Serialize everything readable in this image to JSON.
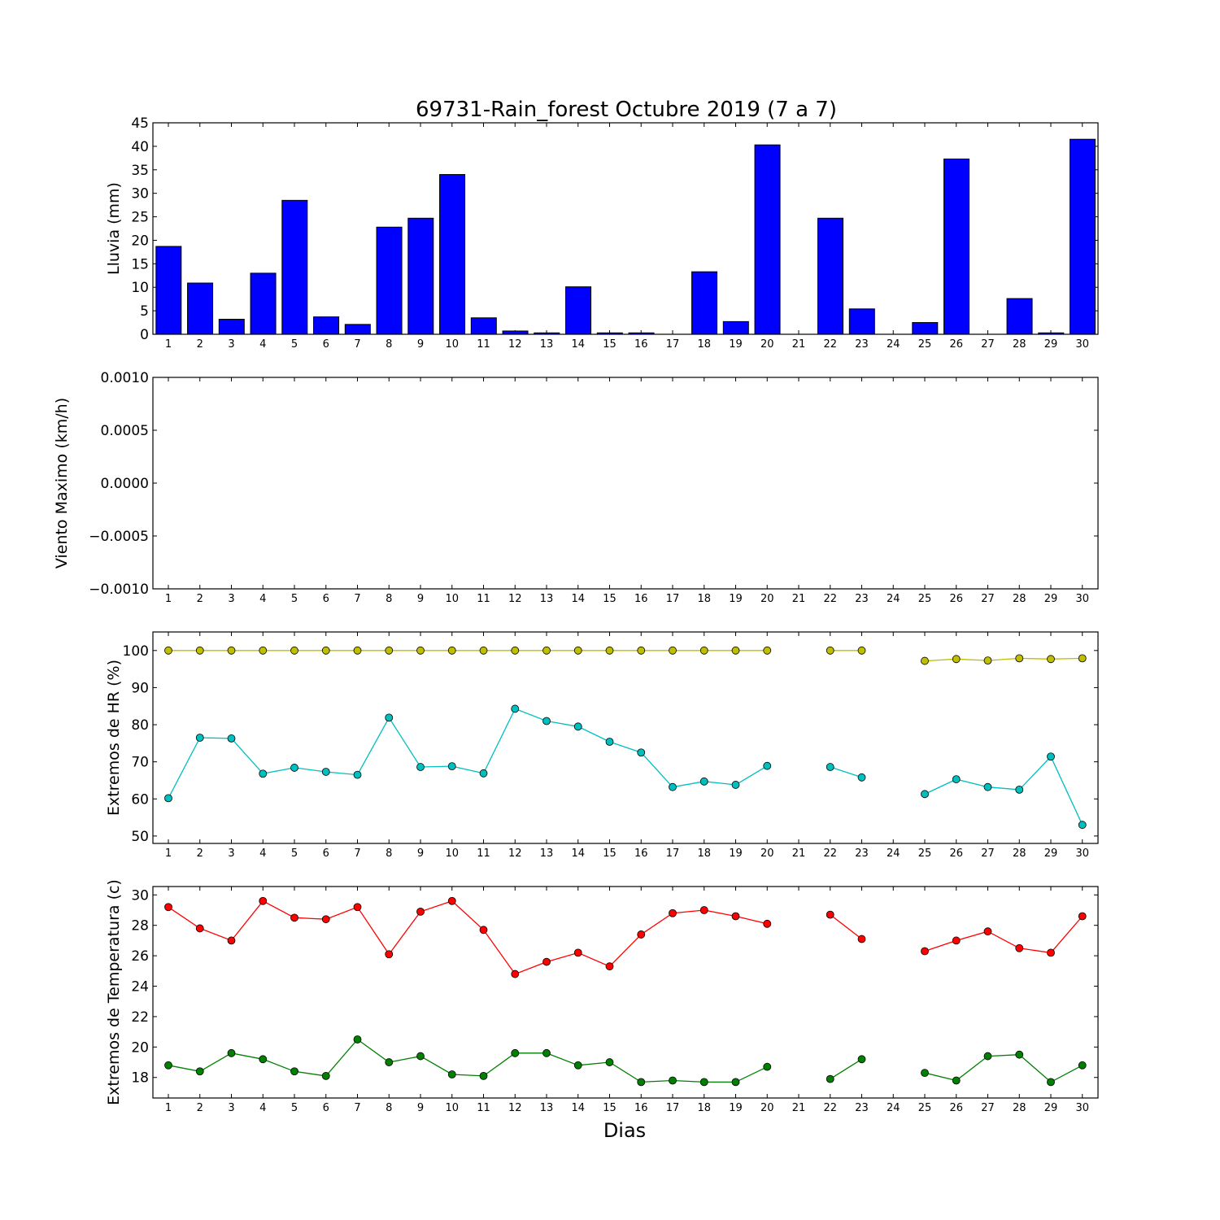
{
  "title": "69731-Rain_forest Octubre 2019  (7 a 7)",
  "xlabel": "Dias",
  "days": [
    1,
    2,
    3,
    4,
    5,
    6,
    7,
    8,
    9,
    10,
    11,
    12,
    13,
    14,
    15,
    16,
    17,
    18,
    19,
    20,
    21,
    22,
    23,
    24,
    25,
    26,
    27,
    28,
    29,
    30
  ],
  "chart_data": [
    {
      "type": "bar",
      "ylabel": "Lluvia (mm)",
      "ylim": [
        0,
        45
      ],
      "yticks": [
        "0",
        "5",
        "10",
        "15",
        "20",
        "25",
        "30",
        "35",
        "40",
        "45"
      ],
      "yticks_values": [
        0,
        5,
        10,
        15,
        20,
        25,
        30,
        35,
        40,
        45
      ],
      "color": "#0000ff",
      "values": [
        18.7,
        10.9,
        3.2,
        13.0,
        28.5,
        3.7,
        2.1,
        22.8,
        24.7,
        34.0,
        3.5,
        0.7,
        0.3,
        10.1,
        0.3,
        0.3,
        0,
        13.3,
        2.7,
        40.3,
        0,
        24.7,
        5.4,
        0,
        2.5,
        37.3,
        0,
        7.6,
        0.3,
        41.5
      ]
    },
    {
      "type": "line",
      "ylabel": "Viento Maximo (km/h)",
      "ylim": [
        -0.001,
        0.001
      ],
      "yticks": [
        "−0.0010",
        "−0.0005",
        "0.0000",
        "0.0005",
        "0.0010"
      ],
      "yticks_values": [
        -0.001,
        -0.0005,
        0,
        0.0005,
        0.001
      ],
      "series": []
    },
    {
      "type": "line",
      "ylabel": "Extremos de HR (%)",
      "ylim": [
        48,
        105
      ],
      "yticks": [
        "50",
        "60",
        "70",
        "80",
        "90",
        "100"
      ],
      "yticks_values": [
        50,
        60,
        70,
        80,
        90,
        100
      ],
      "series": [
        {
          "color": "#bfbf00",
          "values": [
            100,
            100,
            100,
            100,
            100,
            100,
            100,
            100,
            100,
            100,
            100,
            100,
            100,
            100,
            100,
            100,
            100,
            100,
            100,
            100,
            null,
            100,
            100,
            null,
            97.2,
            97.7,
            97.3,
            97.9,
            97.7,
            97.9
          ]
        },
        {
          "color": "#00bfbf",
          "values": [
            60.2,
            76.5,
            76.3,
            66.8,
            68.4,
            67.3,
            66.5,
            81.9,
            68.6,
            68.8,
            66.9,
            84.3,
            81.0,
            79.5,
            75.4,
            72.5,
            63.2,
            64.7,
            63.8,
            68.9,
            null,
            68.6,
            65.8,
            null,
            61.3,
            65.3,
            63.2,
            62.5,
            71.4,
            53.0
          ]
        }
      ]
    },
    {
      "type": "line",
      "ylabel": "Extremos de Temperatura (c)",
      "ylim": [
        16.65,
        30.55
      ],
      "yticks": [
        "18",
        "20",
        "22",
        "24",
        "26",
        "28",
        "30"
      ],
      "yticks_values": [
        18,
        20,
        22,
        24,
        26,
        28,
        30
      ],
      "series": [
        {
          "color": "#ff0000",
          "values": [
            29.2,
            27.8,
            27.0,
            29.6,
            28.5,
            28.4,
            29.2,
            26.1,
            28.9,
            29.6,
            27.7,
            24.8,
            25.6,
            26.2,
            25.3,
            27.4,
            28.8,
            29.0,
            28.6,
            28.1,
            null,
            28.7,
            27.1,
            null,
            26.3,
            27.0,
            27.6,
            26.5,
            26.2,
            28.6
          ]
        },
        {
          "color": "#008000",
          "values": [
            18.8,
            18.4,
            19.6,
            19.2,
            18.4,
            18.1,
            20.5,
            19.0,
            19.4,
            18.2,
            18.1,
            19.6,
            19.6,
            18.8,
            19.0,
            17.7,
            17.8,
            17.7,
            17.7,
            18.7,
            null,
            17.9,
            19.2,
            null,
            18.3,
            17.8,
            19.4,
            19.5,
            17.7,
            18.8
          ]
        }
      ]
    }
  ]
}
